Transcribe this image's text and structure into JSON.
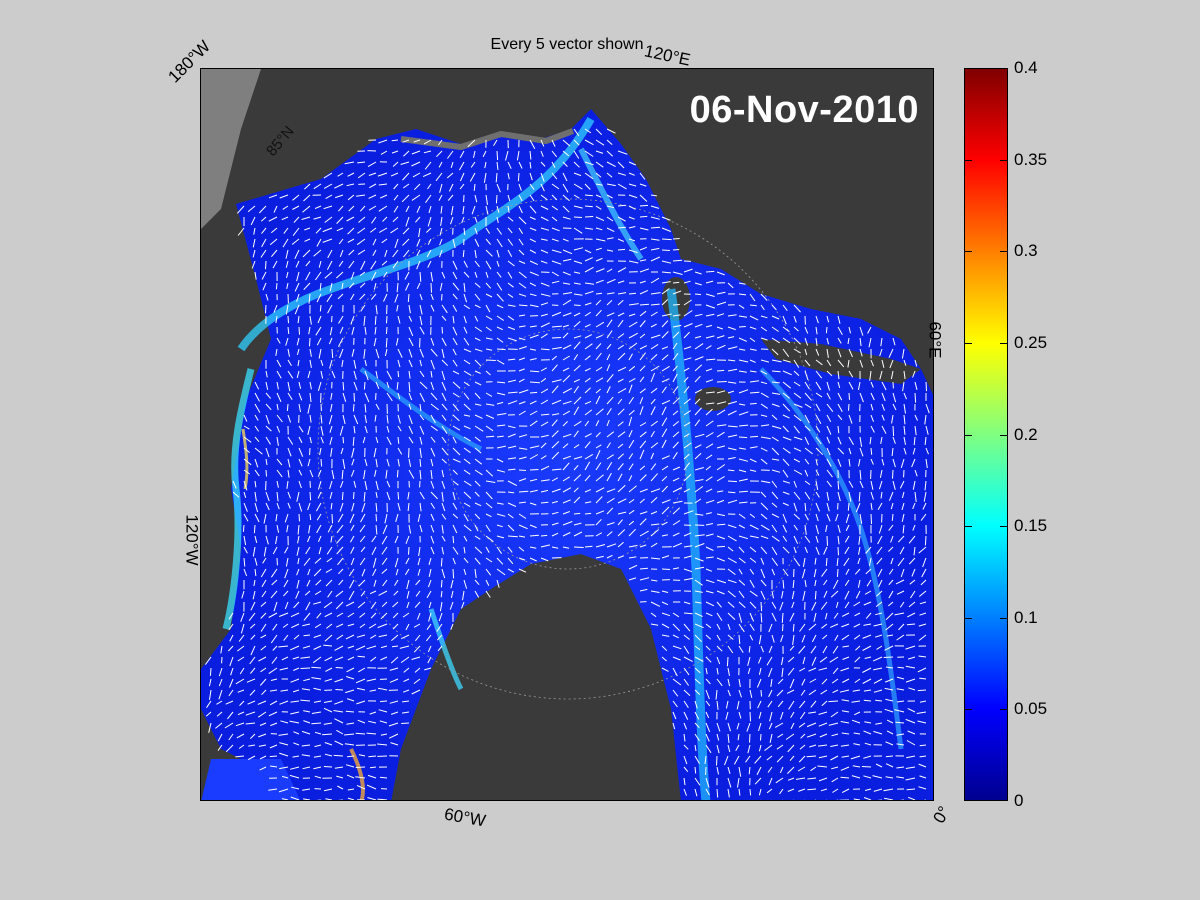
{
  "figure": {
    "title": "Every 5 vector shown",
    "date_label": "06-Nov-2010"
  },
  "map": {
    "longitude_labels": [
      "180°W",
      "120°E",
      "60°E",
      "0°",
      "60°W",
      "120°W"
    ],
    "latitude_labels": [
      "85°N"
    ],
    "land_color": "#3a3a3a",
    "outside_color": "#7f7f7f",
    "vector_color": "#ffffff"
  },
  "colorbar": {
    "ticks": [
      "0",
      "0.05",
      "0.1",
      "0.15",
      "0.2",
      "0.25",
      "0.3",
      "0.35",
      "0.4"
    ],
    "min": 0,
    "max": 0.4,
    "colormap": "jet"
  }
}
